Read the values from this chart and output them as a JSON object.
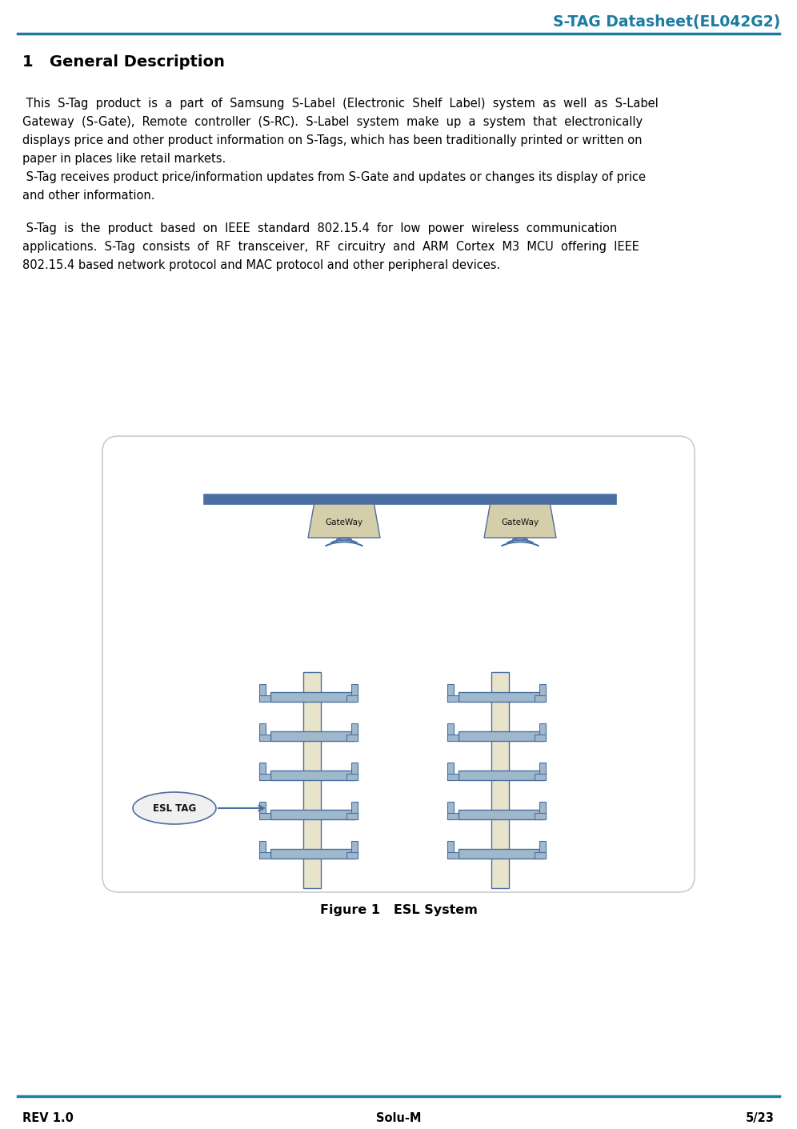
{
  "title": "S-TAG Datasheet(EL042G2)",
  "title_color": "#1B7BA0",
  "header_line_color": "#1B7BA0",
  "section_heading": "1   General Description",
  "para1_lines": [
    " This  S-Tag  product  is  a  part  of  Samsung  S-Label  (Electronic  Shelf  Label)  system  as  well  as  S-Label",
    "Gateway  (S-Gate),  Remote  controller  (S-RC).  S-Label  system  make  up  a  system  that  electronically",
    "displays price and other product information on S-Tags, which has been traditionally printed or written on",
    "paper in places like retail markets."
  ],
  "para2_lines": [
    " S-Tag receives product price/information updates from S-Gate and updates or changes its display of price",
    "and other information."
  ],
  "para3_lines": [
    " S-Tag  is  the  product  based  on  IEEE  standard  802.15.4  for  low  power  wireless  communication",
    "applications.  S-Tag  consists  of  RF  transceiver,  RF  circuitry  and  ARM  Cortex  M3  MCU  offering  IEEE",
    "802.15.4 based network protocol and MAC protocol and other peripheral devices."
  ],
  "figure_caption": "Figure 1   ESL System",
  "footer_left": "REV 1.0",
  "footer_center": "Solu-M",
  "footer_right": "5/23",
  "footer_line_color": "#1B7BA0",
  "bg_color": "#ffffff",
  "text_color": "#000000",
  "body_font_size": 10.5,
  "heading_font_size": 14,
  "gateway_color": "#d4ceaa",
  "gateway_border": "#4a6fa0",
  "shelf_pole_color": "#e8e4cc",
  "shelf_color": "#a0b8cc",
  "shelf_border": "#4a6fa0",
  "wifi_color": "#4a6fa0",
  "esl_tag_border": "#4a6fa0",
  "outer_box_color": "#cccccc",
  "outer_box_fill": "#ffffff"
}
